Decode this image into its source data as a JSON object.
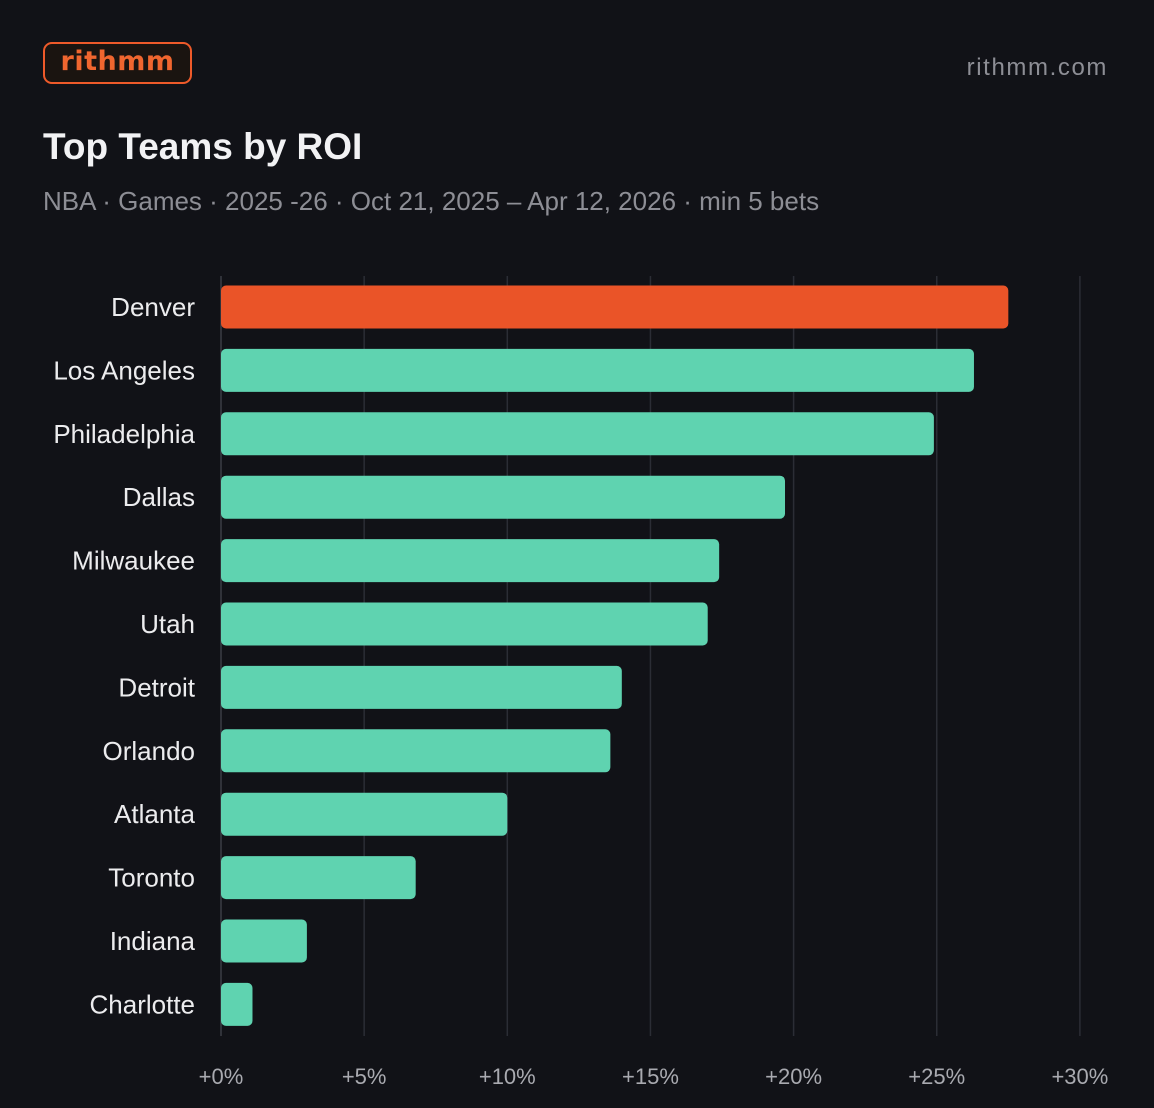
{
  "brand": {
    "logo_text": "rithmm",
    "site": "rithmm.com"
  },
  "colors": {
    "background": "#111217",
    "highlight": "#ea5428",
    "bar": "#5fd3b0",
    "grid": "#2b2d35",
    "accent": "#ee5a2a"
  },
  "chart_data": {
    "type": "bar",
    "orientation": "horizontal",
    "title": "Top Teams  by ROI",
    "subtitle": "NBA · Games  · 2025 -26  · Oct  21, 2025   – Apr  12, 2026   · min  5 bets",
    "categories": [
      "Denver",
      "Los Angeles",
      "Philadelphia",
      "Dallas",
      "Milwaukee",
      "Utah",
      "Detroit",
      "Orlando",
      "Atlanta",
      "Toronto",
      "Indiana",
      "Charlotte"
    ],
    "values": [
      27.5,
      26.3,
      24.9,
      19.7,
      17.4,
      17.0,
      14.0,
      13.6,
      10.0,
      6.8,
      3.0,
      1.1
    ],
    "highlight_index": 0,
    "xlim": [
      0,
      30
    ],
    "xticks": [
      0,
      5,
      10,
      15,
      20,
      25,
      30
    ],
    "xtick_labels": [
      "+0%",
      "+5%",
      "+10%",
      "+15%",
      "+20%",
      "+25%",
      "+30%"
    ],
    "xlabel": "",
    "ylabel": "",
    "grid": true
  }
}
